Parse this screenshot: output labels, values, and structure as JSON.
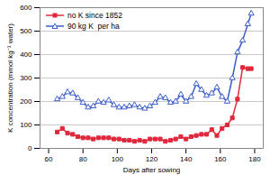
{
  "chart_data": {
    "type": "line",
    "x_label": "Days after sowing",
    "y_label": "K concentration (mmol kg⁻¹ water)",
    "x": [
      65,
      68,
      71,
      74,
      77,
      80,
      83,
      86,
      89,
      92,
      95,
      98,
      101,
      104,
      107,
      110,
      113,
      116,
      119,
      122,
      125,
      128,
      131,
      134,
      137,
      140,
      143,
      146,
      149,
      152,
      155,
      158,
      161,
      164,
      167,
      170,
      173,
      176,
      178
    ],
    "series": [
      {
        "name": "no K since 1852",
        "color": "#e0283c",
        "marker": "square",
        "values": [
          70,
          85,
          65,
          60,
          50,
          45,
          45,
          40,
          45,
          45,
          45,
          40,
          40,
          35,
          35,
          30,
          35,
          30,
          40,
          40,
          40,
          30,
          35,
          40,
          50,
          40,
          50,
          55,
          60,
          60,
          80,
          55,
          85,
          100,
          130,
          210,
          345,
          340,
          340
        ]
      },
      {
        "name": "90 kg K  per ha",
        "color": "#3a5fc8",
        "marker": "triangle",
        "values": [
          210,
          220,
          240,
          235,
          215,
          195,
          175,
          180,
          200,
          195,
          205,
          185,
          175,
          175,
          180,
          185,
          175,
          170,
          180,
          195,
          220,
          215,
          195,
          200,
          230,
          200,
          220,
          275,
          250,
          225,
          235,
          260,
          220,
          200,
          300,
          410,
          460,
          530,
          575
        ]
      }
    ],
    "xlim": [
      55,
      185
    ],
    "xticks": [
      60,
      80,
      100,
      120,
      140,
      160,
      180
    ],
    "ylim": [
      0,
      600
    ],
    "yticks": [
      0,
      100,
      200,
      300,
      400,
      500,
      600
    ],
    "grid": true,
    "legend": "top-left"
  }
}
